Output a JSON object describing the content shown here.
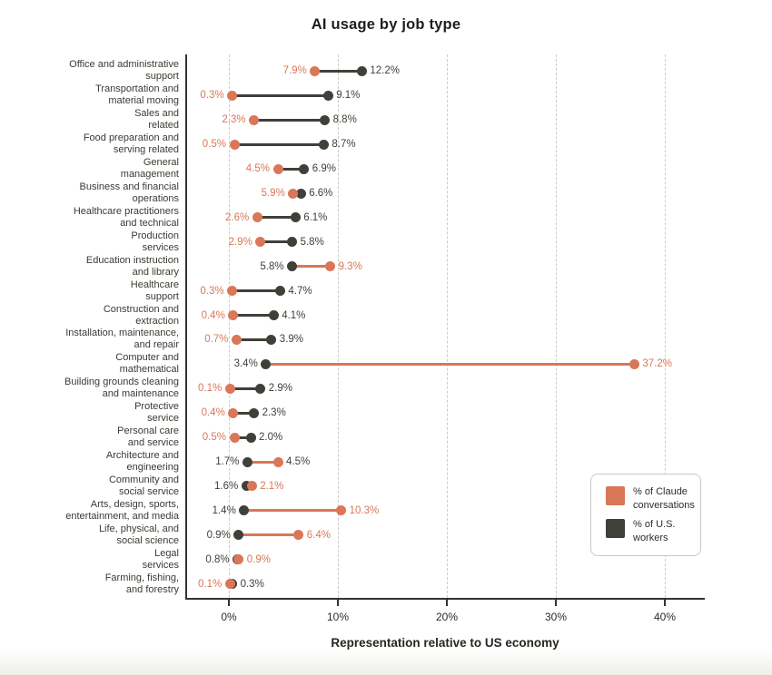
{
  "title": "AI usage by job type",
  "colors": {
    "claude": "#D97757",
    "workers": "#40403A",
    "grid": "#CDCCC5",
    "axis": "#33332D",
    "background": "#FFFFFF"
  },
  "legend": {
    "items": [
      {
        "series": "claude",
        "color": "#D97757",
        "label_lines": [
          "% of Claude",
          "conversations"
        ]
      },
      {
        "series": "workers",
        "color": "#40403A",
        "label_lines": [
          "% of U.S.",
          "workers"
        ]
      }
    ]
  },
  "chart_data": {
    "type": "scatter",
    "variant": "dumbbell",
    "title": "AI usage by job type",
    "xlabel": "Representation relative to US economy",
    "xlim": [
      -3.9,
      43.6
    ],
    "grid": "vertical-dashed",
    "legend_position": "right-center",
    "series_names": [
      "% of Claude conversations",
      "% of U.S. workers"
    ],
    "x_ticks": [
      {
        "value": 0,
        "label": "0%"
      },
      {
        "value": 10,
        "label": "10%"
      },
      {
        "value": 20,
        "label": "20%"
      },
      {
        "value": 30,
        "label": "30%"
      },
      {
        "value": 40,
        "label": "40%"
      }
    ],
    "rows": [
      {
        "category_lines": [
          "Office and administrative",
          "support"
        ],
        "claude": 7.9,
        "workers": 12.2,
        "claude_display": "7.9%",
        "workers_display": "12.2%"
      },
      {
        "category_lines": [
          "Transportation and",
          "material moving"
        ],
        "claude": 0.3,
        "workers": 9.1,
        "claude_display": "0.3%",
        "workers_display": "9.1%"
      },
      {
        "category_lines": [
          "Sales and",
          "related"
        ],
        "claude": 2.3,
        "workers": 8.8,
        "claude_display": "2.3%",
        "workers_display": "8.8%"
      },
      {
        "category_lines": [
          "Food preparation and",
          "serving related"
        ],
        "claude": 0.5,
        "workers": 8.7,
        "claude_display": "0.5%",
        "workers_display": "8.7%"
      },
      {
        "category_lines": [
          "General",
          "management"
        ],
        "claude": 4.5,
        "workers": 6.9,
        "claude_display": "4.5%",
        "workers_display": "6.9%"
      },
      {
        "category_lines": [
          "Business and financial",
          "operations"
        ],
        "claude": 5.9,
        "workers": 6.6,
        "claude_display": "5.9%",
        "workers_display": "6.6%"
      },
      {
        "category_lines": [
          "Healthcare practitioners",
          "and technical"
        ],
        "claude": 2.6,
        "workers": 6.1,
        "claude_display": "2.6%",
        "workers_display": "6.1%"
      },
      {
        "category_lines": [
          "Production",
          "services"
        ],
        "claude": 2.9,
        "workers": 5.8,
        "claude_display": "2.9%",
        "workers_display": "5.8%"
      },
      {
        "category_lines": [
          "Education instruction",
          "and library"
        ],
        "claude": 9.3,
        "workers": 5.8,
        "claude_display": "9.3%",
        "workers_display": "5.8%"
      },
      {
        "category_lines": [
          "Healthcare",
          "support"
        ],
        "claude": 0.3,
        "workers": 4.7,
        "claude_display": "0.3%",
        "workers_display": "4.7%"
      },
      {
        "category_lines": [
          "Construction and",
          "extraction"
        ],
        "claude": 0.4,
        "workers": 4.1,
        "claude_display": "0.4%",
        "workers_display": "4.1%"
      },
      {
        "category_lines": [
          "Installation, maintenance,",
          "and repair"
        ],
        "claude": 0.7,
        "workers": 3.9,
        "claude_display": "0.7%",
        "workers_display": "3.9%"
      },
      {
        "category_lines": [
          "Computer and",
          "mathematical"
        ],
        "claude": 37.2,
        "workers": 3.4,
        "claude_display": "37.2%",
        "workers_display": "3.4%"
      },
      {
        "category_lines": [
          "Building grounds cleaning",
          "and maintenance"
        ],
        "claude": 0.1,
        "workers": 2.9,
        "claude_display": "0.1%",
        "workers_display": "2.9%"
      },
      {
        "category_lines": [
          "Protective",
          "service"
        ],
        "claude": 0.4,
        "workers": 2.3,
        "claude_display": "0.4%",
        "workers_display": "2.3%"
      },
      {
        "category_lines": [
          "Personal care",
          "and service"
        ],
        "claude": 0.5,
        "workers": 2.0,
        "claude_display": "0.5%",
        "workers_display": "2.0%"
      },
      {
        "category_lines": [
          "Architecture and",
          "engineering"
        ],
        "claude": 4.5,
        "workers": 1.7,
        "claude_display": "4.5%",
        "workers_display": "1.7%",
        "claude_label_color": "#40403A"
      },
      {
        "category_lines": [
          "Community and",
          "social service"
        ],
        "claude": 2.1,
        "workers": 1.6,
        "claude_display": "2.1%",
        "workers_display": "1.6%"
      },
      {
        "category_lines": [
          "Arts, design, sports,",
          "entertainment, and media"
        ],
        "claude": 10.3,
        "workers": 1.4,
        "claude_display": "10.3%",
        "workers_display": "1.4%"
      },
      {
        "category_lines": [
          "Life, physical, and",
          "social science"
        ],
        "claude": 6.4,
        "workers": 0.9,
        "claude_display": "6.4%",
        "workers_display": "0.9%"
      },
      {
        "category_lines": [
          "Legal",
          "services"
        ],
        "claude": 0.9,
        "workers": 0.8,
        "claude_display": "0.9%",
        "workers_display": "0.8%"
      },
      {
        "category_lines": [
          "Farming, fishing,",
          "and forestry"
        ],
        "claude": 0.1,
        "workers": 0.3,
        "claude_display": "0.1%",
        "workers_display": "0.3%"
      }
    ]
  }
}
